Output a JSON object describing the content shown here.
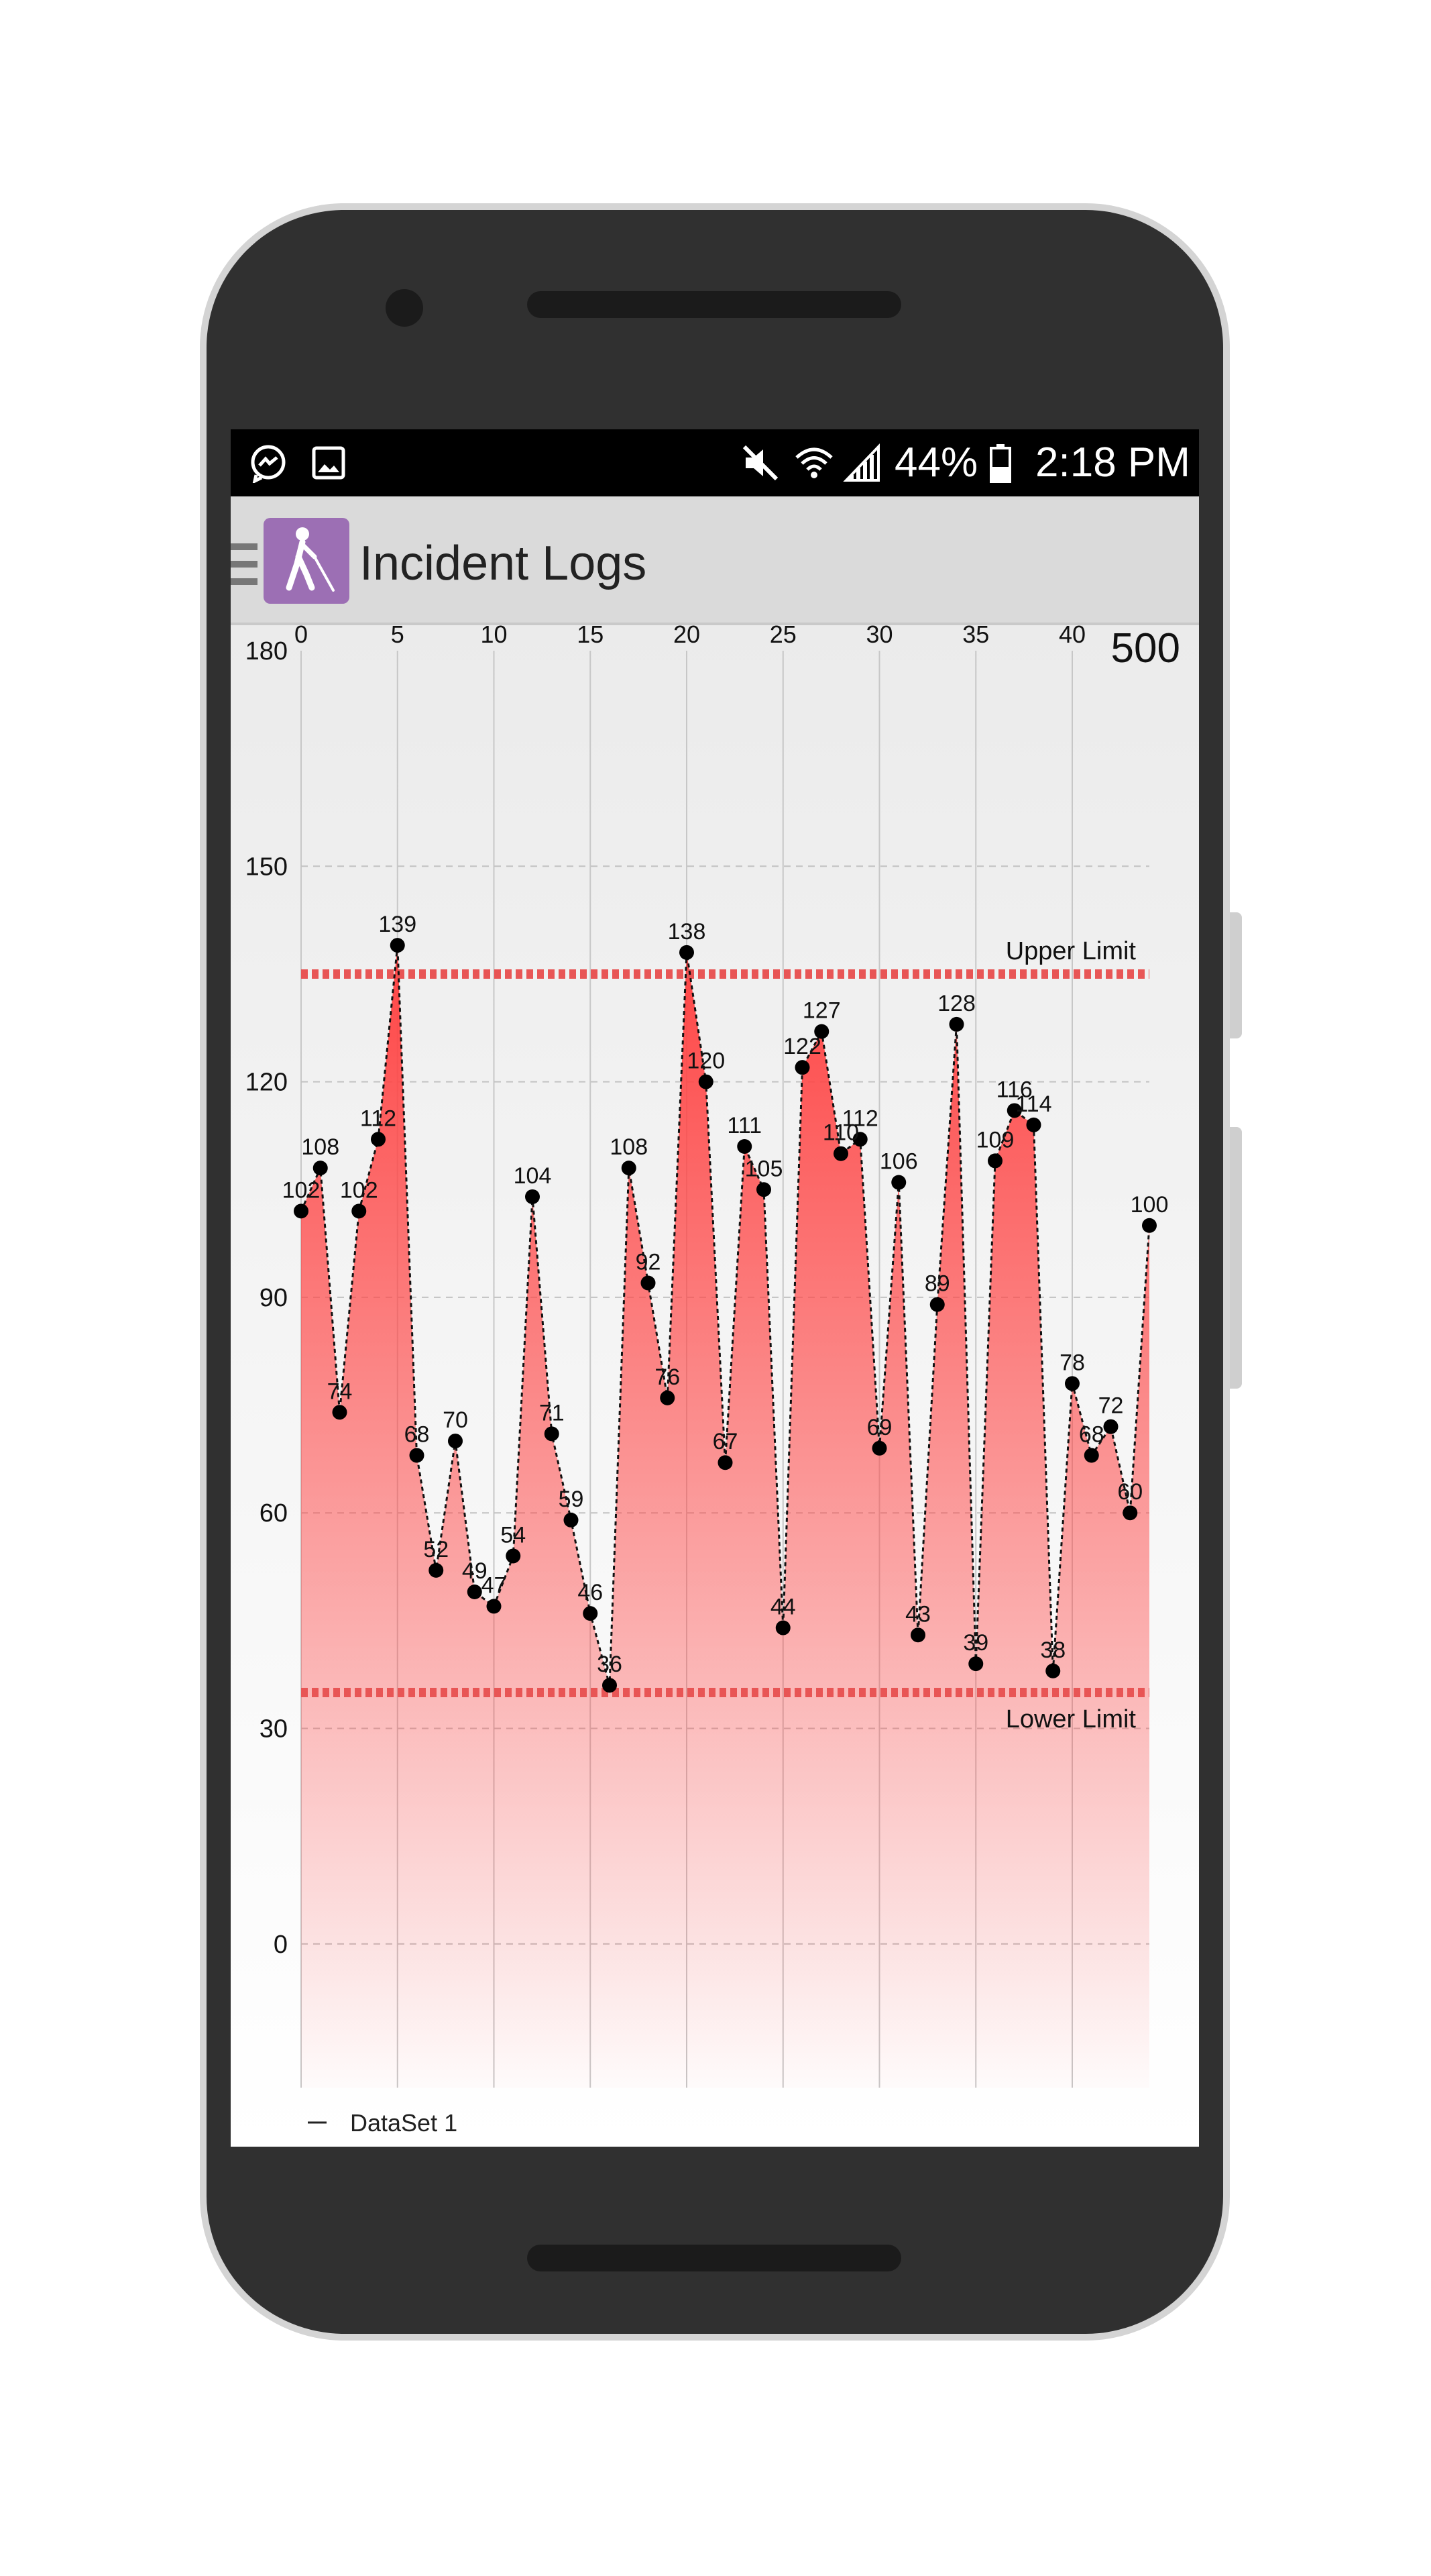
{
  "status_bar": {
    "icons": [
      "messenger-icon",
      "gallery-icon",
      "mute-icon",
      "wifi-icon",
      "signal-icon",
      "battery-icon"
    ],
    "battery_text": "44%",
    "time": "2:18 PM"
  },
  "app_bar": {
    "menu_icon": "hamburger-menu-icon",
    "app_icon": "accessibility-walking-cane-icon",
    "app_icon_color": "#9c6fb4",
    "title": "Incident Logs"
  },
  "chart_data": {
    "type": "area",
    "x": [
      0,
      1,
      2,
      3,
      4,
      5,
      6,
      7,
      8,
      9,
      10,
      11,
      12,
      13,
      14,
      15,
      16,
      17,
      18,
      19,
      20,
      21,
      22,
      23,
      24,
      25,
      26,
      27,
      28,
      29,
      30,
      31,
      32,
      33,
      34,
      35,
      36,
      37,
      38,
      39,
      40,
      41,
      42,
      43,
      44
    ],
    "series": [
      {
        "name": "DataSet 1",
        "values": [
          102,
          108,
          74,
          102,
          112,
          139,
          68,
          52,
          70,
          49,
          47,
          54,
          104,
          71,
          59,
          46,
          36,
          108,
          92,
          76,
          138,
          120,
          67,
          111,
          105,
          44,
          122,
          127,
          110,
          112,
          69,
          106,
          43,
          89,
          128,
          39,
          109,
          116,
          114,
          38,
          78,
          68,
          72,
          60,
          100
        ]
      }
    ],
    "x_ticks": [
      0,
      5,
      10,
      15,
      20,
      25,
      30,
      35,
      40
    ],
    "y_ticks": [
      180,
      150,
      120,
      90,
      60,
      30,
      0
    ],
    "xlim": [
      0,
      44
    ],
    "ylim": [
      -20,
      180
    ],
    "x_axis_position": "top",
    "corner_value": "500",
    "limit_lines": [
      {
        "label": "Upper Limit",
        "value": 135,
        "color": "#e85555"
      },
      {
        "label": "Lower Limit",
        "value": 35,
        "color": "#e85555"
      }
    ],
    "fill_color": "#ff4545",
    "line_style": "dashed",
    "grid": true,
    "legend_position": "bottom-left"
  }
}
